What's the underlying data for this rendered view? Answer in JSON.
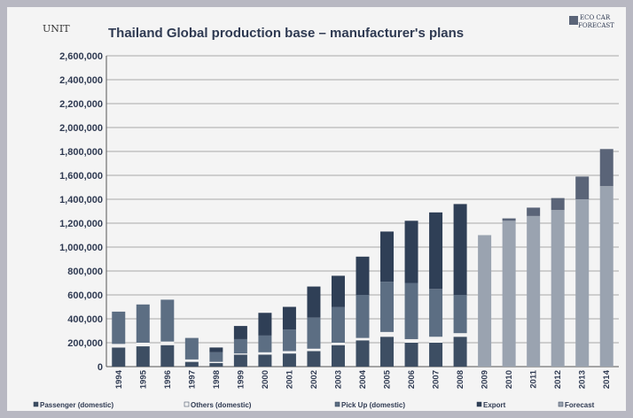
{
  "chart_data": {
    "type": "bar",
    "stacked": true,
    "title": "Thailand Global production base – manufacturer's plans",
    "unit_label": "UNIT",
    "eco_legend": [
      "ECO CAR",
      "FORECAST"
    ],
    "ylim": [
      0,
      2600000
    ],
    "yticks": [
      "2,600,000",
      "2,400,000",
      "2,200,000",
      "2,000,000",
      "1,800,000",
      "1,600,000",
      "1,400,000",
      "1,200,000",
      "1,000,000",
      "800,000",
      "600,000",
      "400,000",
      "200,000",
      "0"
    ],
    "categories": [
      "1994",
      "1995",
      "1996",
      "1997",
      "1998",
      "1999",
      "2000",
      "2001",
      "2002",
      "2003",
      "2004",
      "2005",
      "2006",
      "2007",
      "2008",
      "2009",
      "2010",
      "2011",
      "2012",
      "2013",
      "2014"
    ],
    "series": [
      {
        "name": "Passenger (domestic)",
        "color": "#3d4e63",
        "values": [
          160000,
          170000,
          180000,
          40000,
          30000,
          100000,
          100000,
          110000,
          130000,
          180000,
          220000,
          250000,
          200000,
          200000,
          250000,
          0,
          0,
          0,
          0,
          0,
          0
        ]
      },
      {
        "name": "Others (domestic)",
        "color": "#f2f2f2",
        "values": [
          30000,
          30000,
          30000,
          20000,
          10000,
          10000,
          20000,
          20000,
          20000,
          20000,
          20000,
          40000,
          30000,
          50000,
          30000,
          0,
          0,
          0,
          0,
          0,
          0
        ]
      },
      {
        "name": "Pick Up (domestic)",
        "color": "#5c6e83",
        "values": [
          270000,
          320000,
          350000,
          180000,
          80000,
          120000,
          140000,
          180000,
          260000,
          300000,
          360000,
          420000,
          470000,
          400000,
          320000,
          0,
          0,
          0,
          0,
          0,
          0
        ]
      },
      {
        "name": "Export",
        "color": "#2f3f56",
        "values": [
          0,
          0,
          0,
          0,
          40000,
          110000,
          190000,
          190000,
          260000,
          260000,
          320000,
          420000,
          520000,
          640000,
          760000,
          0,
          0,
          0,
          0,
          0,
          0
        ]
      },
      {
        "name": "Forecast",
        "color": "#9aa3b0",
        "values": [
          0,
          0,
          0,
          0,
          0,
          0,
          0,
          0,
          0,
          0,
          0,
          0,
          0,
          0,
          0,
          1100000,
          1220000,
          1260000,
          1310000,
          1400000,
          1510000
        ]
      },
      {
        "name": "ECO CAR FORECAST",
        "color": "#5a6478",
        "values": [
          0,
          0,
          0,
          0,
          0,
          0,
          0,
          0,
          0,
          0,
          0,
          0,
          0,
          0,
          0,
          0,
          20000,
          70000,
          100000,
          190000,
          310000
        ]
      }
    ],
    "legend": [
      "Passenger (domestic)",
      "Others (domestic)",
      "Pick Up (domestic)",
      "Export",
      "Forecast"
    ],
    "legend_position": "bottom",
    "grid": true
  }
}
